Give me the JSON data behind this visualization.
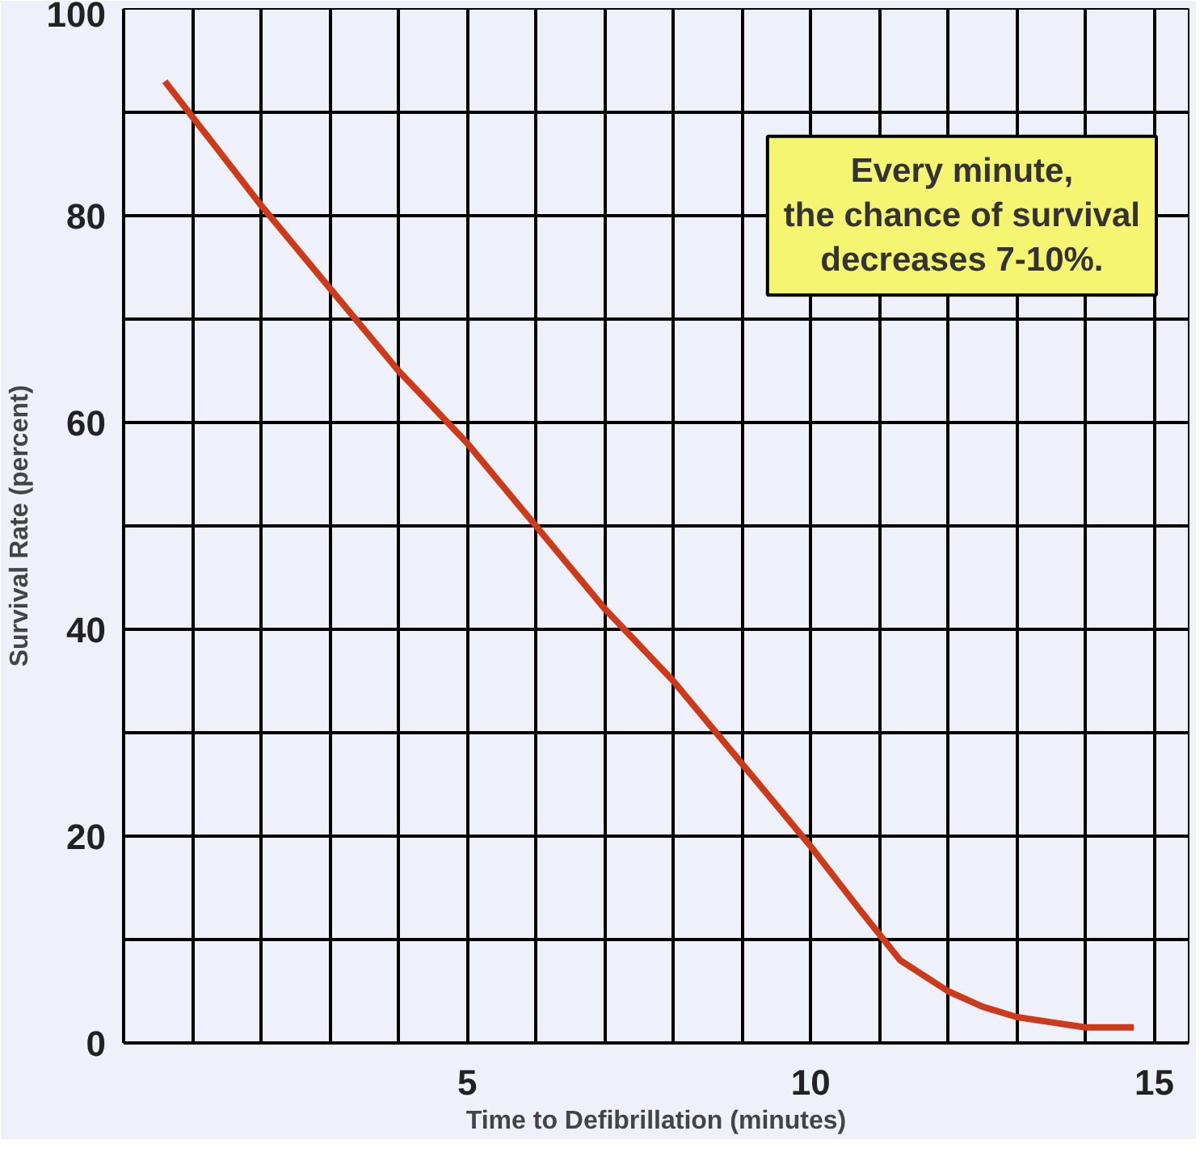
{
  "chart_data": {
    "type": "line",
    "xlabel": "Time to Defibrillation (minutes)",
    "ylabel": "Survival Rate (percent)",
    "annotations": [
      "Every minute,\nthe chance of survival\ndecreases 7-10%."
    ],
    "x": [
      0.6,
      2,
      3,
      4,
      5,
      6,
      7,
      8,
      9,
      10,
      10.7,
      11.3,
      12,
      12.5,
      13,
      13.5,
      14,
      14.7
    ],
    "series": [
      {
        "color": "#cc3a1a",
        "values": [
          93,
          81,
          73,
          65,
          58,
          50,
          42,
          35,
          27,
          19,
          13,
          8,
          5,
          3.5,
          2.5,
          2,
          1.5,
          1.5
        ]
      }
    ],
    "xlim": [
      0,
      15.5
    ],
    "ylim": [
      0,
      100
    ],
    "xticks": [
      {
        "value": 1,
        "label": null
      },
      {
        "value": 2,
        "label": null
      },
      {
        "value": 3,
        "label": null
      },
      {
        "value": 4,
        "label": null
      },
      5,
      {
        "value": 6,
        "label": null
      },
      {
        "value": 7,
        "label": null
      },
      {
        "value": 8,
        "label": null
      },
      {
        "value": 9,
        "label": null
      },
      10,
      {
        "value": 11,
        "label": null
      },
      {
        "value": 12,
        "label": null
      },
      {
        "value": 13,
        "label": null
      },
      {
        "value": 14,
        "label": null
      },
      15
    ],
    "yticks": [
      0,
      {
        "value": 10,
        "label": null
      },
      20,
      {
        "value": 30,
        "label": null
      },
      40,
      {
        "value": 50,
        "label": null
      },
      60,
      {
        "value": 70,
        "label": null
      },
      80,
      {
        "value": 90,
        "label": null
      },
      100
    ],
    "grid": true,
    "line_style": "solid",
    "marker": "none"
  }
}
